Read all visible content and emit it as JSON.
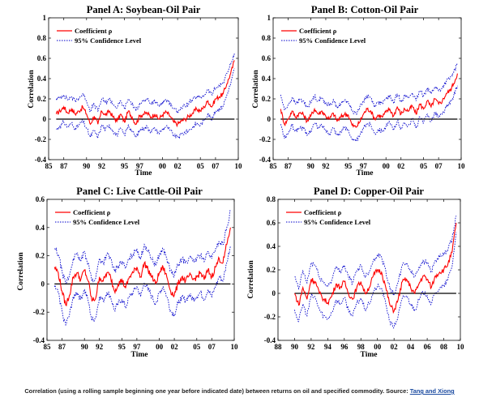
{
  "caption": {
    "text": "Correlation (using a rolling sample beginning one year before indicated date) between returns on oil and specified commodity. Source:",
    "link_text": "Tang and Xiong"
  },
  "colors": {
    "coefficient": "#ff0000",
    "confidence": "#0000cc",
    "zero_line": "#000000"
  },
  "chart_data": [
    {
      "type": "line",
      "title": "Panel A: Soybean-Oil Pair",
      "xlabel": "Time",
      "ylabel": "Correlation",
      "xlim": [
        1985,
        2010
      ],
      "ylim": [
        -0.4,
        1
      ],
      "xticks": [
        1985,
        1987,
        1990,
        1992,
        1995,
        1997,
        2000,
        2002,
        2005,
        2007,
        2010
      ],
      "xtick_labels": [
        "85",
        "87",
        "90",
        "92",
        "95",
        "97",
        "00",
        "02",
        "05",
        "07",
        "10"
      ],
      "yticks": [
        -0.4,
        -0.2,
        0,
        0.2,
        0.4,
        0.6,
        0.8,
        1
      ],
      "ytick_labels": [
        "-0.4",
        "-0.2",
        "0",
        "0.2",
        "0.4",
        "0.6",
        "0.8",
        "1"
      ],
      "legend": {
        "position": "top-left",
        "entries": [
          "Coefficient ρ",
          "95% Confidence Level"
        ]
      },
      "x": [
        1986.0,
        1986.5,
        1987.0,
        1987.5,
        1988.0,
        1988.5,
        1989.0,
        1989.5,
        1990.0,
        1990.5,
        1991.0,
        1991.5,
        1992.0,
        1992.5,
        1993.0,
        1993.5,
        1994.0,
        1994.5,
        1995.0,
        1995.5,
        1996.0,
        1996.5,
        1997.0,
        1997.5,
        1998.0,
        1998.5,
        1999.0,
        1999.5,
        2000.0,
        2000.5,
        2001.0,
        2001.5,
        2002.0,
        2002.5,
        2003.0,
        2003.5,
        2004.0,
        2004.5,
        2005.0,
        2005.5,
        2006.0,
        2006.5,
        2007.0,
        2007.5,
        2008.0,
        2008.5,
        2009.0,
        2009.5
      ],
      "series": [
        {
          "name": "Coefficient ρ",
          "values": [
            0.05,
            0.08,
            0.12,
            0.06,
            0.1,
            0.05,
            0.08,
            0.12,
            0.05,
            -0.05,
            0.03,
            -0.05,
            0.08,
            0.04,
            0.08,
            0.02,
            -0.02,
            0.05,
            -0.03,
            0.08,
            0.02,
            -0.05,
            0.03,
            0.05,
            0.06,
            0.02,
            0.05,
            0.0,
            0.04,
            0.07,
            0.03,
            -0.03,
            -0.05,
            -0.02,
            0.0,
            0.03,
            0.06,
            0.1,
            0.08,
            0.12,
            0.18,
            0.12,
            0.2,
            0.22,
            0.25,
            0.35,
            0.45,
            0.58
          ]
        },
        {
          "name": "95% Confidence Level",
          "values": [
            0.2,
            0.21,
            0.24,
            0.19,
            0.22,
            0.18,
            0.21,
            0.25,
            0.18,
            0.08,
            0.15,
            0.08,
            0.2,
            0.16,
            0.2,
            0.15,
            0.11,
            0.18,
            0.1,
            0.2,
            0.15,
            0.08,
            0.16,
            0.18,
            0.19,
            0.15,
            0.18,
            0.13,
            0.17,
            0.19,
            0.16,
            0.1,
            0.08,
            0.11,
            0.13,
            0.16,
            0.19,
            0.22,
            0.21,
            0.24,
            0.29,
            0.24,
            0.31,
            0.33,
            0.36,
            0.45,
            0.54,
            0.65
          ]
        },
        {
          "name": "",
          "values": [
            -0.1,
            -0.07,
            -0.03,
            -0.08,
            -0.04,
            -0.09,
            -0.06,
            -0.02,
            -0.09,
            -0.18,
            -0.11,
            -0.18,
            -0.06,
            -0.1,
            -0.06,
            -0.12,
            -0.16,
            -0.09,
            -0.16,
            -0.06,
            -0.12,
            -0.18,
            -0.11,
            -0.09,
            -0.08,
            -0.12,
            -0.09,
            -0.14,
            -0.1,
            -0.07,
            -0.11,
            -0.16,
            -0.18,
            -0.15,
            -0.13,
            -0.11,
            -0.08,
            -0.04,
            -0.06,
            -0.01,
            0.06,
            -0.01,
            0.08,
            0.1,
            0.13,
            0.24,
            0.35,
            0.5
          ]
        }
      ]
    },
    {
      "type": "line",
      "title": "Panel B: Cotton-Oil Pair",
      "xlabel": "Time",
      "ylabel": "Correlation",
      "xlim": [
        1985,
        2010
      ],
      "ylim": [
        -0.4,
        1
      ],
      "xticks": [
        1985,
        1987,
        1990,
        1992,
        1995,
        1997,
        2000,
        2002,
        2005,
        2007,
        2010
      ],
      "xtick_labels": [
        "85",
        "87",
        "90",
        "92",
        "95",
        "97",
        "00",
        "02",
        "05",
        "07",
        "10"
      ],
      "yticks": [
        -0.4,
        -0.2,
        0,
        0.2,
        0.4,
        0.6,
        0.8,
        1
      ],
      "ytick_labels": [
        "-0.4",
        "-0.2",
        "0",
        "0.2",
        "0.4",
        "0.6",
        "0.8",
        "1"
      ],
      "legend": {
        "position": "top-left",
        "entries": [
          "Coefficient ρ",
          "95% Confidence Level"
        ]
      },
      "x": [
        1986.0,
        1986.5,
        1987.0,
        1987.5,
        1988.0,
        1988.5,
        1989.0,
        1989.5,
        1990.0,
        1990.5,
        1991.0,
        1991.5,
        1992.0,
        1992.5,
        1993.0,
        1993.5,
        1994.0,
        1994.5,
        1995.0,
        1995.5,
        1996.0,
        1996.5,
        1997.0,
        1997.5,
        1998.0,
        1998.5,
        1999.0,
        1999.5,
        2000.0,
        2000.5,
        2001.0,
        2001.5,
        2002.0,
        2002.5,
        2003.0,
        2003.5,
        2004.0,
        2004.5,
        2005.0,
        2005.5,
        2006.0,
        2006.5,
        2007.0,
        2007.5,
        2008.0,
        2008.5,
        2009.0,
        2009.5
      ],
      "series": [
        {
          "name": "Coefficient ρ",
          "values": [
            0.1,
            -0.05,
            0.0,
            0.08,
            0.02,
            0.06,
            0.05,
            -0.02,
            0.03,
            0.1,
            0.05,
            0.08,
            0.03,
            0.0,
            0.06,
            -0.02,
            0.02,
            0.05,
            0.04,
            -0.06,
            -0.08,
            -0.03,
            0.05,
            0.1,
            0.08,
            0.0,
            0.04,
            0.02,
            0.07,
            0.1,
            0.03,
            0.12,
            0.05,
            0.1,
            0.08,
            0.13,
            0.05,
            0.15,
            0.1,
            0.18,
            0.12,
            0.2,
            0.15,
            0.18,
            0.25,
            0.28,
            0.35,
            0.45
          ]
        },
        {
          "name": "95% Confidence Level",
          "values": [
            0.24,
            0.09,
            0.14,
            0.21,
            0.15,
            0.19,
            0.18,
            0.12,
            0.16,
            0.23,
            0.18,
            0.21,
            0.16,
            0.13,
            0.19,
            0.12,
            0.15,
            0.18,
            0.17,
            0.08,
            0.06,
            0.11,
            0.18,
            0.23,
            0.21,
            0.13,
            0.17,
            0.15,
            0.2,
            0.23,
            0.16,
            0.25,
            0.18,
            0.23,
            0.21,
            0.26,
            0.18,
            0.28,
            0.23,
            0.31,
            0.25,
            0.32,
            0.28,
            0.31,
            0.37,
            0.4,
            0.46,
            0.55
          ]
        },
        {
          "name": "",
          "values": [
            -0.05,
            -0.19,
            -0.14,
            -0.06,
            -0.12,
            -0.08,
            -0.09,
            -0.16,
            -0.11,
            -0.04,
            -0.09,
            -0.06,
            -0.11,
            -0.14,
            -0.08,
            -0.16,
            -0.12,
            -0.09,
            -0.1,
            -0.2,
            -0.22,
            -0.17,
            -0.09,
            -0.04,
            -0.06,
            -0.14,
            -0.1,
            -0.12,
            -0.07,
            -0.04,
            -0.11,
            -0.02,
            -0.09,
            -0.04,
            -0.06,
            0.0,
            -0.09,
            0.02,
            -0.04,
            0.05,
            -0.02,
            0.07,
            0.02,
            0.05,
            0.12,
            0.15,
            0.23,
            0.33
          ]
        }
      ]
    },
    {
      "type": "line",
      "title": "Panel C: Live Cattle-Oil Pair",
      "xlabel": "Time",
      "ylabel": "Correlation",
      "xlim": [
        1985,
        2010
      ],
      "ylim": [
        -0.4,
        0.6
      ],
      "xticks": [
        1985,
        1987,
        1990,
        1992,
        1995,
        1997,
        2000,
        2002,
        2005,
        2007,
        2010
      ],
      "xtick_labels": [
        "85",
        "87",
        "90",
        "92",
        "95",
        "97",
        "00",
        "02",
        "05",
        "07",
        "10"
      ],
      "yticks": [
        -0.4,
        -0.2,
        0,
        0.2,
        0.4,
        0.6
      ],
      "ytick_labels": [
        "-0.4",
        "-0.2",
        "0",
        "0.2",
        "0.4",
        "0.6"
      ],
      "legend": {
        "position": "top-left",
        "entries": [
          "Coefficient ρ",
          "95% Confidence Level"
        ]
      },
      "x": [
        1986.0,
        1986.5,
        1987.0,
        1987.5,
        1988.0,
        1988.5,
        1989.0,
        1989.5,
        1990.0,
        1990.5,
        1991.0,
        1991.5,
        1992.0,
        1992.5,
        1993.0,
        1993.5,
        1994.0,
        1994.5,
        1995.0,
        1995.5,
        1996.0,
        1996.5,
        1997.0,
        1997.5,
        1998.0,
        1998.5,
        1999.0,
        1999.5,
        2000.0,
        2000.5,
        2001.0,
        2001.5,
        2002.0,
        2002.5,
        2003.0,
        2003.5,
        2004.0,
        2004.5,
        2005.0,
        2005.5,
        2006.0,
        2006.5,
        2007.0,
        2007.5,
        2008.0,
        2008.5,
        2009.0,
        2009.5
      ],
      "series": [
        {
          "name": "Coefficient ρ",
          "values": [
            0.12,
            0.08,
            -0.05,
            -0.15,
            -0.08,
            0.05,
            0.08,
            0.03,
            0.1,
            0.02,
            -0.12,
            -0.1,
            0.05,
            0.02,
            0.08,
            0.05,
            -0.05,
            0.0,
            0.03,
            -0.03,
            0.05,
            0.08,
            0.12,
            0.05,
            0.15,
            0.1,
            0.05,
            0.0,
            0.08,
            0.12,
            0.05,
            -0.05,
            -0.08,
            0.0,
            0.05,
            0.02,
            0.06,
            0.03,
            0.05,
            0.08,
            0.03,
            0.1,
            0.05,
            0.12,
            0.18,
            0.15,
            0.28,
            0.4
          ]
        },
        {
          "name": "95% Confidence Level",
          "values": [
            0.25,
            0.21,
            0.09,
            0.0,
            0.06,
            0.18,
            0.21,
            0.16,
            0.23,
            0.15,
            0.02,
            0.04,
            0.18,
            0.15,
            0.21,
            0.18,
            0.09,
            0.13,
            0.16,
            0.11,
            0.18,
            0.21,
            0.25,
            0.18,
            0.28,
            0.23,
            0.18,
            0.13,
            0.21,
            0.25,
            0.18,
            0.09,
            0.06,
            0.13,
            0.18,
            0.15,
            0.19,
            0.16,
            0.18,
            0.21,
            0.16,
            0.23,
            0.18,
            0.25,
            0.3,
            0.28,
            0.4,
            0.52
          ]
        },
        {
          "name": "",
          "values": [
            -0.02,
            -0.06,
            -0.19,
            -0.29,
            -0.22,
            -0.09,
            -0.06,
            -0.11,
            -0.04,
            -0.12,
            -0.26,
            -0.24,
            -0.09,
            -0.12,
            -0.06,
            -0.09,
            -0.19,
            -0.14,
            -0.11,
            -0.17,
            -0.09,
            -0.06,
            -0.02,
            -0.09,
            0.01,
            -0.04,
            -0.09,
            -0.14,
            -0.06,
            -0.02,
            -0.09,
            -0.19,
            -0.22,
            -0.14,
            -0.09,
            -0.12,
            -0.08,
            -0.11,
            -0.09,
            -0.06,
            -0.11,
            -0.04,
            -0.09,
            -0.02,
            0.05,
            0.02,
            0.15,
            0.27
          ]
        }
      ]
    },
    {
      "type": "line",
      "title": "Panel D: Copper-Oil Pair",
      "xlabel": "Time",
      "ylabel": "Correlation",
      "xlim": [
        1988,
        2010
      ],
      "ylim": [
        -0.4,
        0.8
      ],
      "xticks": [
        1988,
        1990,
        1992,
        1994,
        1996,
        1998,
        2000,
        2002,
        2004,
        2006,
        2008,
        2010
      ],
      "xtick_labels": [
        "88",
        "90",
        "92",
        "94",
        "96",
        "98",
        "00",
        "02",
        "04",
        "06",
        "08",
        "10"
      ],
      "yticks": [
        -0.4,
        -0.2,
        0,
        0.2,
        0.4,
        0.6,
        0.8
      ],
      "ytick_labels": [
        "-0.4",
        "-0.2",
        "0",
        "0.2",
        "0.4",
        "0.6",
        "0.8"
      ],
      "legend": {
        "position": "top-left",
        "entries": [
          "Coefficient ρ",
          "95% Confidence Level"
        ]
      },
      "x": [
        1990.0,
        1990.5,
        1991.0,
        1991.5,
        1992.0,
        1992.5,
        1993.0,
        1993.5,
        1994.0,
        1994.5,
        1995.0,
        1995.5,
        1996.0,
        1996.5,
        1997.0,
        1997.5,
        1998.0,
        1998.5,
        1999.0,
        1999.5,
        2000.0,
        2000.5,
        2001.0,
        2001.5,
        2002.0,
        2002.5,
        2003.0,
        2003.5,
        2004.0,
        2004.5,
        2005.0,
        2005.5,
        2006.0,
        2006.5,
        2007.0,
        2007.5,
        2008.0,
        2008.5,
        2009.0,
        2009.5
      ],
      "series": [
        {
          "name": "Coefficient ρ",
          "values": [
            0.0,
            -0.1,
            0.05,
            -0.05,
            0.12,
            0.1,
            0.0,
            -0.05,
            -0.08,
            -0.02,
            0.08,
            0.05,
            0.1,
            0.0,
            -0.05,
            0.05,
            0.1,
            0.0,
            0.05,
            0.15,
            0.2,
            0.18,
            0.05,
            -0.1,
            -0.15,
            -0.05,
            0.1,
            0.12,
            0.05,
            0.0,
            0.08,
            0.15,
            0.12,
            0.05,
            0.15,
            0.18,
            0.2,
            0.25,
            0.35,
            0.6
          ]
        },
        {
          "name": "95% Confidence Level",
          "values": [
            0.14,
            0.04,
            0.19,
            0.09,
            0.26,
            0.24,
            0.14,
            0.09,
            0.06,
            0.12,
            0.22,
            0.19,
            0.24,
            0.14,
            0.09,
            0.19,
            0.24,
            0.14,
            0.19,
            0.28,
            0.33,
            0.31,
            0.19,
            0.04,
            -0.01,
            0.09,
            0.24,
            0.26,
            0.19,
            0.14,
            0.22,
            0.28,
            0.26,
            0.19,
            0.28,
            0.31,
            0.33,
            0.37,
            0.46,
            0.66
          ]
        },
        {
          "name": "",
          "values": [
            -0.14,
            -0.24,
            -0.09,
            -0.19,
            -0.02,
            -0.04,
            -0.14,
            -0.19,
            -0.22,
            -0.16,
            -0.06,
            -0.09,
            -0.04,
            -0.14,
            -0.19,
            -0.09,
            -0.04,
            -0.14,
            -0.09,
            0.01,
            0.06,
            0.04,
            -0.09,
            -0.24,
            -0.29,
            -0.19,
            -0.04,
            -0.02,
            -0.09,
            -0.14,
            -0.06,
            0.01,
            -0.02,
            -0.09,
            0.01,
            0.04,
            0.06,
            0.12,
            0.23,
            0.52
          ]
        }
      ]
    }
  ]
}
